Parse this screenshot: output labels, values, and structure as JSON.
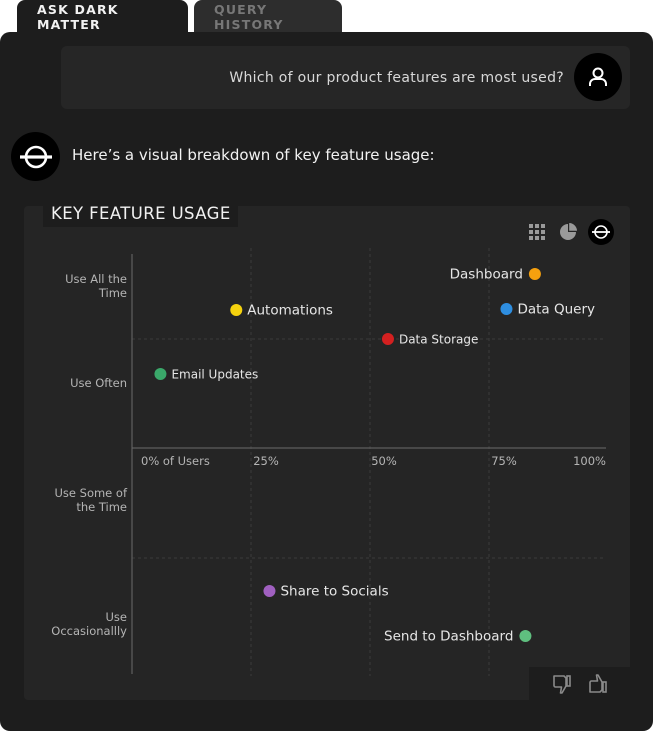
{
  "tabs": [
    {
      "label": "ASK DARK MATTER",
      "active": true
    },
    {
      "label": "QUERY HISTORY",
      "active": false
    }
  ],
  "user_message": "Which of our product features are most used?",
  "bot_message": "Here’s a visual breakdown of key feature usage:",
  "card": {
    "title": "KEY FEATURE USAGE",
    "view_icons": [
      "grid-view-icon",
      "pie-view-icon",
      "scatter-view-icon"
    ],
    "active_view": "scatter-view-icon"
  },
  "chart_data": {
    "type": "scatter",
    "xlabel": "",
    "ylabel": "",
    "x_ticks": [
      "0% of Users",
      "25%",
      "50%",
      "75%",
      "100%"
    ],
    "x_range": [
      0,
      100
    ],
    "y_categories": [
      "Use All the Time",
      "Use Often",
      "Use Some of the Time",
      "Use Occasionallly"
    ],
    "grid": true,
    "points": [
      {
        "label": "Dashboard",
        "x": 85,
        "y": "Use All the Time",
        "color": "#f5a00e"
      },
      {
        "label": "Automations",
        "x": 22,
        "y": "Use All the Time",
        "color": "#f5d20e"
      },
      {
        "label": "Data Query",
        "x": 79,
        "y": "Use All the Time",
        "color": "#2e8ee0"
      },
      {
        "label": "Data Storage",
        "x": 54,
        "y": "Use All the Time",
        "color": "#d42020"
      },
      {
        "label": "Email Updates",
        "x": 6,
        "y": "Use Often",
        "color": "#3aa86a"
      },
      {
        "label": "Share to Socials",
        "x": 29,
        "y": "Use Occasionallly",
        "color": "#a060c0"
      },
      {
        "label": "Send to Dashboard",
        "x": 83,
        "y": "Use Occasionallly",
        "color": "#5fbf7f"
      }
    ]
  },
  "feedback": {
    "icons": [
      "thumbs-down-icon",
      "thumbs-up-icon"
    ]
  }
}
